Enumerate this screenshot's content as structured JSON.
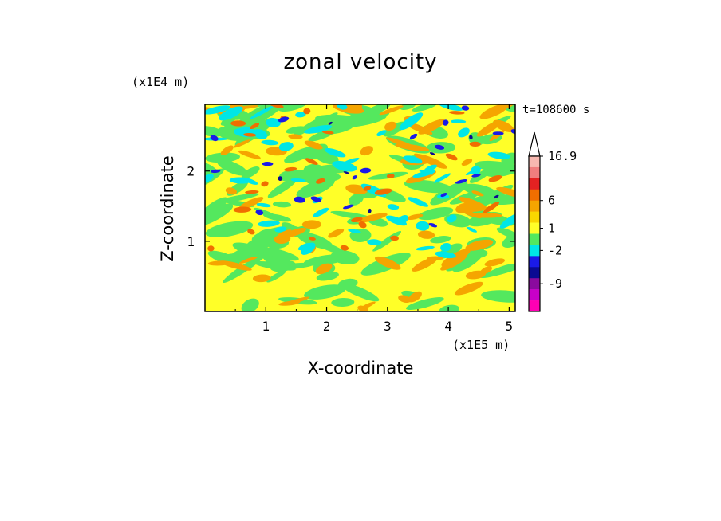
{
  "chart_data": {
    "type": "heatmap",
    "title": "zonal velocity",
    "xlabel": "X-coordinate",
    "ylabel": "Z-coordinate",
    "x_scale_note": "(x1E5 m)",
    "y_scale_note": "(x1E4 m)",
    "time_label": "t=108600 s",
    "xlim": [
      0,
      5.1
    ],
    "ylim": [
      0,
      2.95
    ],
    "x_ticks": [
      1,
      2,
      3,
      4,
      5
    ],
    "y_ticks": [
      1,
      2
    ],
    "colorbar": {
      "labels": [
        {
          "level": 16.9,
          "text": "16.9"
        },
        {
          "level": 6,
          "text": "6"
        },
        {
          "level": 1,
          "text": "1"
        },
        {
          "level": -2,
          "text": "-2"
        },
        {
          "level": -9,
          "text": "-9"
        }
      ],
      "bands": [
        {
          "color": "#f7b8b0"
        },
        {
          "color": "#f07e7e"
        },
        {
          "color": "#e42222"
        },
        {
          "color": "#f06e00"
        },
        {
          "color": "#f5a500"
        },
        {
          "color": "#f9d700"
        },
        {
          "color": "#ffff28"
        },
        {
          "color": "#54e85e"
        },
        {
          "color": "#00e6e6"
        },
        {
          "color": "#1a1ae8"
        },
        {
          "color": "#0a0a92"
        },
        {
          "color": "#8a0a9e"
        },
        {
          "color": "#c800c8"
        },
        {
          "color": "#ff00b4"
        }
      ],
      "extend_top_color": "#ffffff"
    },
    "field_colors": {
      "background": "#ffff28",
      "green": "#54e85e",
      "cyan": "#00e6e6",
      "orange": "#f5a500",
      "dark_orange": "#f06e00",
      "blue": "#1a1ae8",
      "navy": "#0a0a92"
    }
  }
}
